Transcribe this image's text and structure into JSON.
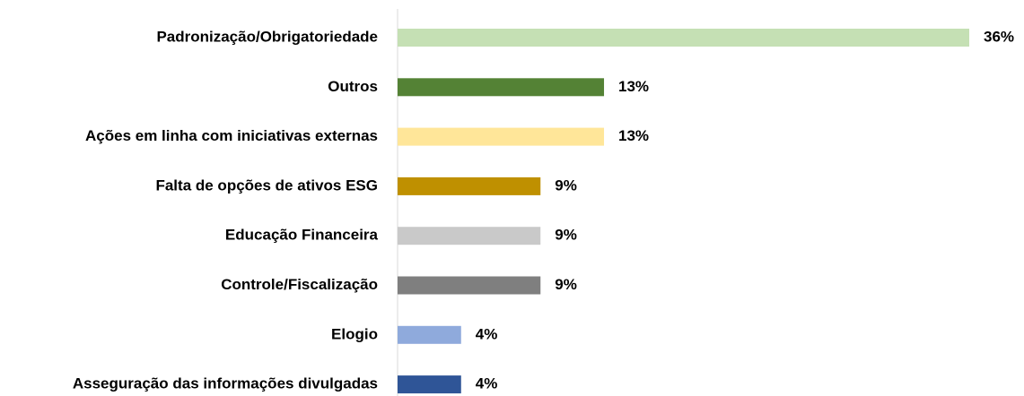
{
  "chart_data": {
    "type": "bar",
    "orientation": "horizontal",
    "categories": [
      "Padronização/Obrigatoriedade",
      "Outros",
      "Ações em linha com iniciativas externas",
      "Falta de opções de ativos ESG",
      "Educação Financeira",
      "Controle/Fiscalização",
      "Elogio",
      "Asseguração das informações divulgadas"
    ],
    "values": [
      36,
      13,
      13,
      9,
      9,
      9,
      4,
      4
    ],
    "value_labels": [
      "36%",
      "13%",
      "13%",
      "9%",
      "9%",
      "9%",
      "4%",
      "4%"
    ],
    "colors": [
      "#c5e0b4",
      "#548235",
      "#ffe699",
      "#bf9000",
      "#c9c9c9",
      "#7f7f7f",
      "#8faadc",
      "#2f5597"
    ]
  }
}
